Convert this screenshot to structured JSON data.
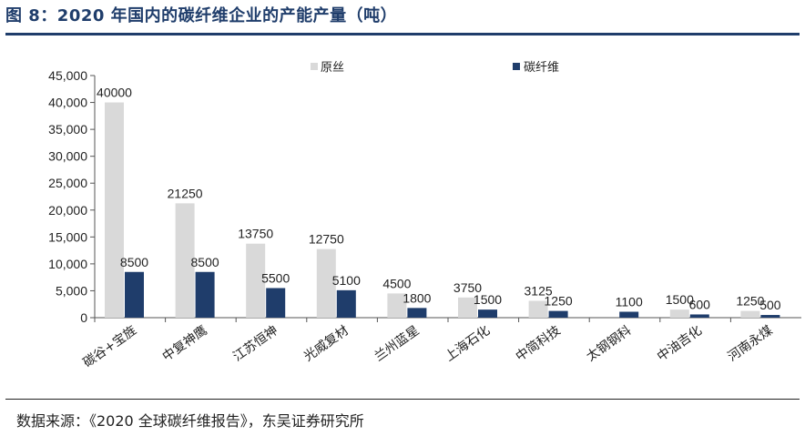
{
  "figure_title": "图 8：2020 年国内的碳纤维企业的产能产量（吨）",
  "source_note": "数据来源：《2020 全球碳纤维报告》，东吴证券研究所",
  "colors": {
    "title": "#1f3d6b",
    "raw_silk": "#d9d9d9",
    "carbon_fiber": "#1f3d6b"
  },
  "chart_data": {
    "type": "bar",
    "categories": [
      "碳谷+宝旌",
      "中复神鹰",
      "江苏恒神",
      "光威复材",
      "兰州蓝星",
      "上海石化",
      "中简科技",
      "太钢钢科",
      "中油吉化",
      "河南永煤"
    ],
    "series": [
      {
        "name": "原丝",
        "color": "#d9d9d9",
        "values": [
          40000,
          21250,
          13750,
          12750,
          4500,
          3750,
          3125,
          null,
          1500,
          1250
        ]
      },
      {
        "name": "碳纤维",
        "color": "#1f3d6b",
        "values": [
          8500,
          8500,
          5500,
          5100,
          1800,
          1500,
          1250,
          1100,
          600,
          500
        ]
      }
    ],
    "data_labels": [
      [
        "40000",
        "21250",
        "13750",
        "12750",
        "4500",
        "3750",
        "3125",
        "",
        "1500",
        "1250"
      ],
      [
        "8500",
        "8500",
        "5500",
        "5100",
        "1800",
        "1500",
        "1250",
        "1100",
        "600",
        "500"
      ]
    ],
    "ylim": [
      0,
      45000
    ],
    "yticks": [
      0,
      5000,
      10000,
      15000,
      20000,
      25000,
      30000,
      35000,
      40000,
      45000
    ],
    "ytick_labels": [
      "0",
      "5,000",
      "10,000",
      "15,000",
      "20,000",
      "25,000",
      "30,000",
      "35,000",
      "40,000",
      "45,000"
    ],
    "legend_position": "top-right",
    "grid": false,
    "xlabel": "",
    "ylabel": ""
  }
}
